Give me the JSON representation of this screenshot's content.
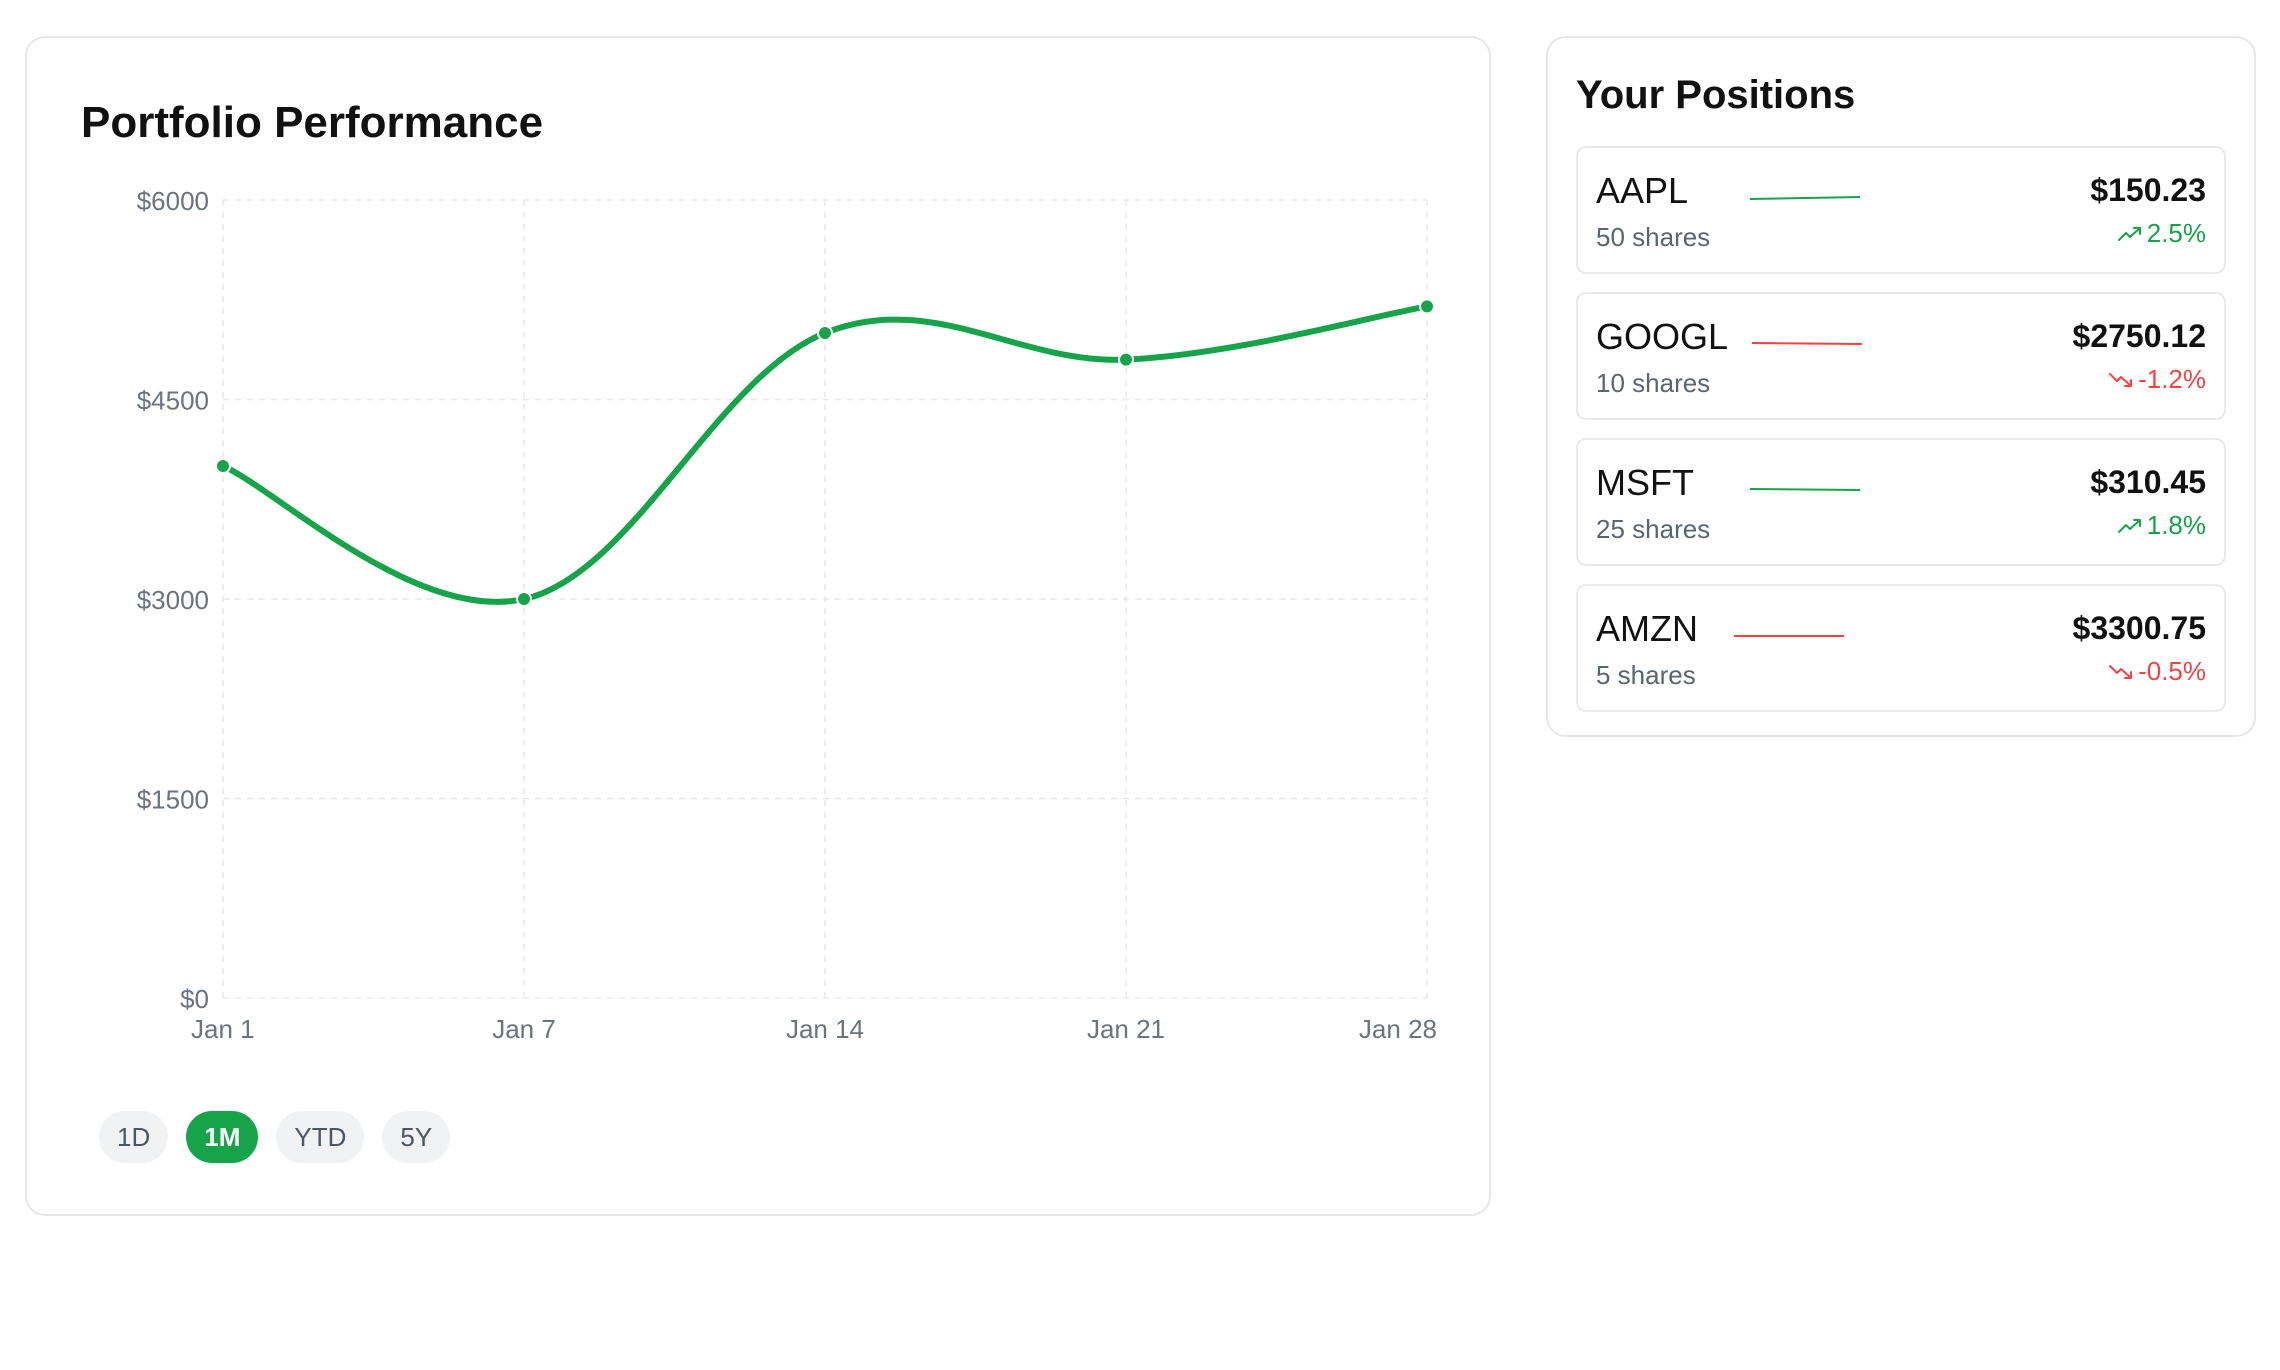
{
  "colors": {
    "green": "#16a34a",
    "red": "#ef4444"
  },
  "performance": {
    "title": "Portfolio Performance",
    "ranges": [
      {
        "label": "1D",
        "active": false
      },
      {
        "label": "1M",
        "active": true
      },
      {
        "label": "YTD",
        "active": false
      },
      {
        "label": "5Y",
        "active": false
      }
    ]
  },
  "chart_data": {
    "type": "line",
    "title": "Portfolio Performance",
    "categories": [
      "Jan 1",
      "Jan 7",
      "Jan 14",
      "Jan 21",
      "Jan 28"
    ],
    "values": [
      4000,
      3000,
      5000,
      4800,
      5200
    ],
    "yticks": [
      0,
      1500,
      3000,
      4500,
      6000
    ],
    "ytick_labels": [
      "$0",
      "$1500",
      "$3000",
      "$4500",
      "$6000"
    ],
    "ylim": [
      0,
      6000
    ],
    "xlabel": "",
    "ylabel": "",
    "grid": true,
    "color": "#16a34a"
  },
  "positions": {
    "title": "Your Positions",
    "items": [
      {
        "symbol": "AAPL",
        "shares": "50 shares",
        "price": "$150.23",
        "change": "2.5%",
        "direction": "up"
      },
      {
        "symbol": "GOOGL",
        "shares": "10 shares",
        "price": "$2750.12",
        "change": "-1.2%",
        "direction": "down"
      },
      {
        "symbol": "MSFT",
        "shares": "25 shares",
        "price": "$310.45",
        "change": "1.8%",
        "direction": "up"
      },
      {
        "symbol": "AMZN",
        "shares": "5 shares",
        "price": "$3300.75",
        "change": "-0.5%",
        "direction": "down"
      }
    ]
  }
}
